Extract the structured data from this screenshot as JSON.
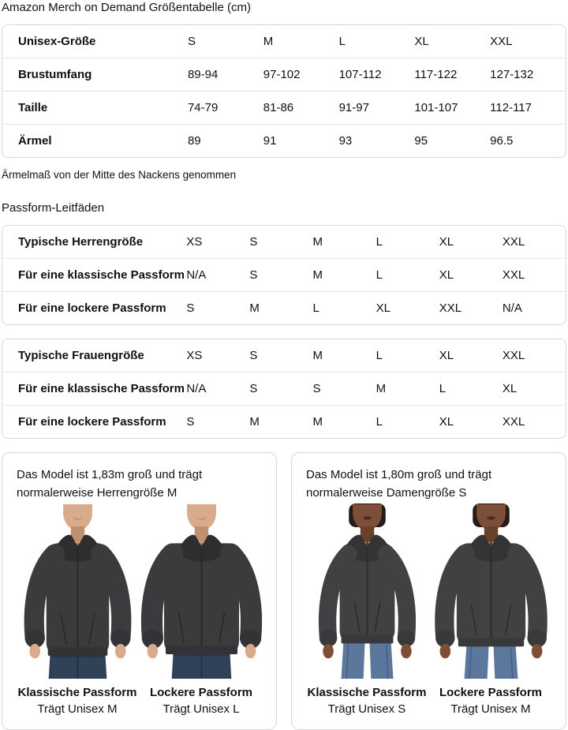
{
  "page": {
    "title": "Amazon Merch on Demand Größentabelle (cm)"
  },
  "size_table": {
    "rows": [
      {
        "label": "Unisex-Größe",
        "values": [
          "S",
          "M",
          "L",
          "XL",
          "XXL"
        ]
      },
      {
        "label": "Brustumfang",
        "values": [
          "89-94",
          "97-102",
          "107-112",
          "117-122",
          "127-132"
        ]
      },
      {
        "label": "Taille",
        "values": [
          "74-79",
          "81-86",
          "91-97",
          "101-107",
          "112-117"
        ]
      },
      {
        "label": "Ärmel",
        "values": [
          "89",
          "91",
          "93",
          "95",
          "96.5"
        ]
      }
    ],
    "note": "Ärmelmaß von der Mitte des Nackens genommen"
  },
  "fit_guides": {
    "heading": "Passform-Leitfäden",
    "tables": [
      {
        "rows": [
          {
            "label": "Typische Herrengröße",
            "values": [
              "XS",
              "S",
              "M",
              "L",
              "XL",
              "XXL"
            ]
          },
          {
            "label": "Für eine klassische Passform",
            "values": [
              "N/A",
              "S",
              "M",
              "L",
              "XL",
              "XXL"
            ]
          },
          {
            "label": "Für eine lockere Passform",
            "values": [
              "S",
              "M",
              "L",
              "XL",
              "XXL",
              "N/A"
            ]
          }
        ]
      },
      {
        "rows": [
          {
            "label": "Typische Frauengröße",
            "values": [
              "XS",
              "S",
              "M",
              "L",
              "XL",
              "XXL"
            ]
          },
          {
            "label": "Für eine klassische Passform",
            "values": [
              "N/A",
              "S",
              "S",
              "M",
              "L",
              "XL"
            ]
          },
          {
            "label": "Für eine lockere Passform",
            "values": [
              "S",
              "M",
              "M",
              "L",
              "XL",
              "XXL"
            ]
          }
        ]
      }
    ]
  },
  "model_cards": [
    {
      "description": "Das Model ist 1,83m groß und trägt normalerweise Herrengröße M",
      "figures": [
        {
          "fit_label": "Klassische Passform",
          "size_label": "Trägt Unisex M"
        },
        {
          "fit_label": "Lockere Passform",
          "size_label": "Trägt Unisex L"
        }
      ]
    },
    {
      "description": "Das Model ist 1,80m groß und trägt normalerweise Damengröße S",
      "figures": [
        {
          "fit_label": "Klassische Passform",
          "size_label": "Trägt Unisex S"
        },
        {
          "fit_label": "Lockere Passform",
          "size_label": "Trägt Unisex M"
        }
      ]
    }
  ],
  "colors": {
    "text": "#0f1111",
    "table_border": "#d5d9d9",
    "row_divider": "#e4e7e7",
    "hoodie": "#3b3b3d",
    "jeans_men": "#2f4257",
    "jeans_women": "#5c779c"
  }
}
